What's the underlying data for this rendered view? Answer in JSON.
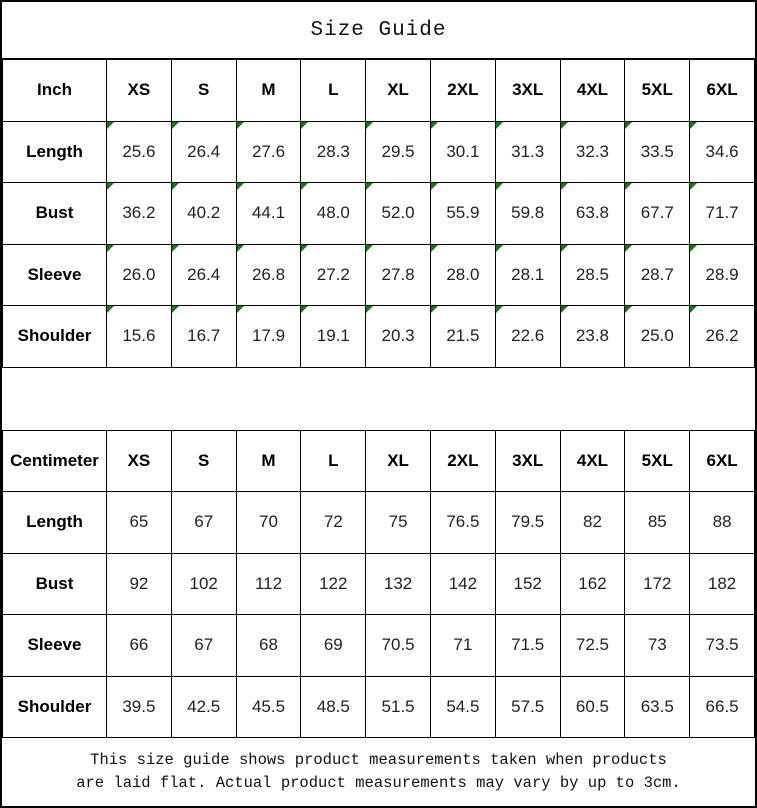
{
  "title": "Size Guide",
  "colors": {
    "background": "#ffffff",
    "border": "#000000",
    "text": "#000000",
    "value_text": "#222222",
    "corner_marker_green": "#0e7d0e"
  },
  "tables": [
    {
      "id": "inch",
      "unit_label": "Inch",
      "sizes": [
        "XS",
        "S",
        "M",
        "L",
        "XL",
        "2XL",
        "3XL",
        "4XL",
        "5XL",
        "6XL"
      ],
      "has_markers": true,
      "rows": [
        {
          "label": "Length",
          "values": [
            "25.6",
            "26.4",
            "27.6",
            "28.3",
            "29.5",
            "30.1",
            "31.3",
            "32.3",
            "33.5",
            "34.6"
          ]
        },
        {
          "label": "Bust",
          "values": [
            "36.2",
            "40.2",
            "44.1",
            "48.0",
            "52.0",
            "55.9",
            "59.8",
            "63.8",
            "67.7",
            "71.7"
          ]
        },
        {
          "label": "Sleeve",
          "values": [
            "26.0",
            "26.4",
            "26.8",
            "27.2",
            "27.8",
            "28.0",
            "28.1",
            "28.5",
            "28.7",
            "28.9"
          ]
        },
        {
          "label": "Shoulder",
          "values": [
            "15.6",
            "16.7",
            "17.9",
            "19.1",
            "20.3",
            "21.5",
            "22.6",
            "23.8",
            "25.0",
            "26.2"
          ]
        }
      ]
    },
    {
      "id": "centimeter",
      "unit_label": "Centimeter",
      "sizes": [
        "XS",
        "S",
        "M",
        "L",
        "XL",
        "2XL",
        "3XL",
        "4XL",
        "5XL",
        "6XL"
      ],
      "has_markers": false,
      "rows": [
        {
          "label": "Length",
          "values": [
            "65",
            "67",
            "70",
            "72",
            "75",
            "76.5",
            "79.5",
            "82",
            "85",
            "88"
          ]
        },
        {
          "label": "Bust",
          "values": [
            "92",
            "102",
            "112",
            "122",
            "132",
            "142",
            "152",
            "162",
            "172",
            "182"
          ]
        },
        {
          "label": "Sleeve",
          "values": [
            "66",
            "67",
            "68",
            "69",
            "70.5",
            "71",
            "71.5",
            "72.5",
            "73",
            "73.5"
          ]
        },
        {
          "label": "Shoulder",
          "values": [
            "39.5",
            "42.5",
            "45.5",
            "48.5",
            "51.5",
            "54.5",
            "57.5",
            "60.5",
            "63.5",
            "66.5"
          ]
        }
      ]
    }
  ],
  "footer": {
    "line1": "This size guide shows product measurements taken when products",
    "line2": "are laid flat. Actual product measurements may vary by up to 3cm."
  },
  "chart_data": [
    {
      "type": "table",
      "title": "Size Guide (Inch)",
      "columns": [
        "Inch",
        "XS",
        "S",
        "M",
        "L",
        "XL",
        "2XL",
        "3XL",
        "4XL",
        "5XL",
        "6XL"
      ],
      "rows": [
        [
          "Length",
          "25.6",
          "26.4",
          "27.6",
          "28.3",
          "29.5",
          "30.1",
          "31.3",
          "32.3",
          "33.5",
          "34.6"
        ],
        [
          "Bust",
          "36.2",
          "40.2",
          "44.1",
          "48.0",
          "52.0",
          "55.9",
          "59.8",
          "63.8",
          "67.7",
          "71.7"
        ],
        [
          "Sleeve",
          "26.0",
          "26.4",
          "26.8",
          "27.2",
          "27.8",
          "28.0",
          "28.1",
          "28.5",
          "28.7",
          "28.9"
        ],
        [
          "Shoulder",
          "15.6",
          "16.7",
          "17.9",
          "19.1",
          "20.3",
          "21.5",
          "22.6",
          "23.8",
          "25.0",
          "26.2"
        ]
      ]
    },
    {
      "type": "table",
      "title": "Size Guide (Centimeter)",
      "columns": [
        "Centimeter",
        "XS",
        "S",
        "M",
        "L",
        "XL",
        "2XL",
        "3XL",
        "4XL",
        "5XL",
        "6XL"
      ],
      "rows": [
        [
          "Length",
          "65",
          "67",
          "70",
          "72",
          "75",
          "76.5",
          "79.5",
          "82",
          "85",
          "88"
        ],
        [
          "Bust",
          "92",
          "102",
          "112",
          "122",
          "132",
          "142",
          "152",
          "162",
          "172",
          "182"
        ],
        [
          "Sleeve",
          "66",
          "67",
          "68",
          "69",
          "70.5",
          "71",
          "71.5",
          "72.5",
          "73",
          "73.5"
        ],
        [
          "Shoulder",
          "39.5",
          "42.5",
          "45.5",
          "48.5",
          "51.5",
          "54.5",
          "57.5",
          "60.5",
          "63.5",
          "66.5"
        ]
      ]
    }
  ]
}
